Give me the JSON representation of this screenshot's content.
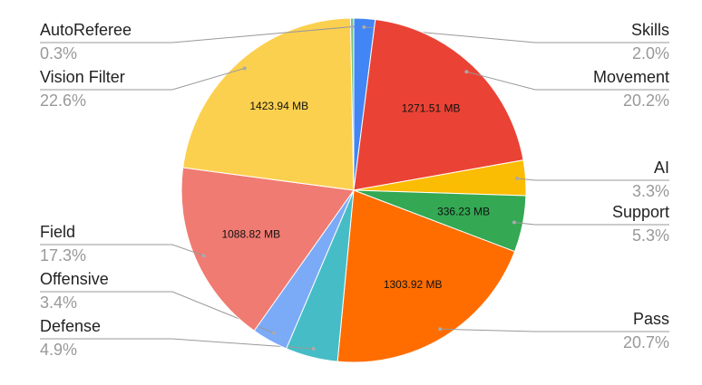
{
  "chart_data": {
    "type": "pie",
    "categories": [
      "Skills",
      "Movement",
      "AI",
      "Support",
      "Pass",
      "Defense",
      "Offensive",
      "Field",
      "Vision Filter",
      "AutoReferee"
    ],
    "values": [
      2.0,
      20.2,
      3.3,
      5.3,
      20.7,
      4.9,
      3.4,
      17.3,
      22.6,
      0.3
    ],
    "value_labels": [
      "2.0%",
      "20.2%",
      "3.3%",
      "5.3%",
      "20.7%",
      "4.9%",
      "3.4%",
      "17.3%",
      "22.6%",
      "0.3%"
    ],
    "mb_labels": [
      null,
      "1271.51 MB",
      null,
      "336.23 MB",
      "1303.92 MB",
      null,
      null,
      "1088.82 MB",
      "1423.94 MB",
      null
    ],
    "colors": [
      "#4285f4",
      "#ea4335",
      "#fbbc04",
      "#34a853",
      "#ff6d01",
      "#46bdc6",
      "#7baaf7",
      "#f07b72",
      "#fcd04f",
      "#71c287"
    ]
  }
}
